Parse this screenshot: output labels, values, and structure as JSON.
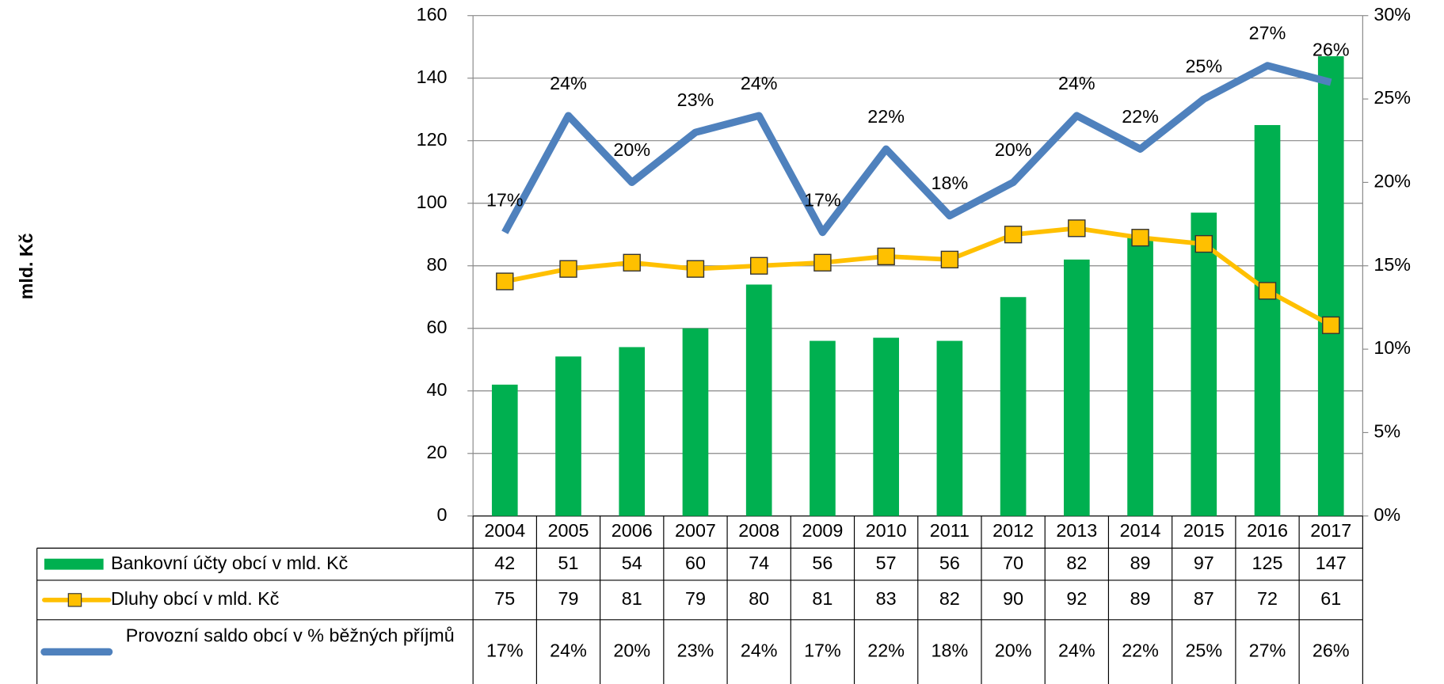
{
  "chart_data": {
    "type": "bar-line",
    "y_axis_label": "mld. Kč",
    "categories": [
      "2004",
      "2005",
      "2006",
      "2007",
      "2008",
      "2009",
      "2010",
      "2011",
      "2012",
      "2013",
      "2014",
      "2015",
      "2016",
      "2017"
    ],
    "series": [
      {
        "name": "Bankovní účty obcí v mld. Kč",
        "type": "bar",
        "color": "#00b050",
        "values": [
          42,
          51,
          54,
          60,
          74,
          56,
          57,
          56,
          70,
          82,
          89,
          97,
          125,
          147
        ]
      },
      {
        "name": "Dluhy obcí v mld. Kč",
        "type": "line",
        "color": "#ffc000",
        "marker": "square",
        "values": [
          75,
          79,
          81,
          79,
          80,
          81,
          83,
          82,
          90,
          92,
          89,
          87,
          72,
          61
        ]
      },
      {
        "name": "Provozní saldo obcí v % běžných příjmů",
        "type": "line",
        "axis": "y2",
        "color": "#4f81bd",
        "values": [
          17,
          24,
          20,
          23,
          24,
          17,
          22,
          18,
          20,
          24,
          22,
          25,
          27,
          26
        ],
        "value_labels": [
          "17%",
          "24%",
          "20%",
          "23%",
          "24%",
          "17%",
          "22%",
          "18%",
          "20%",
          "24%",
          "22%",
          "25%",
          "27%",
          "26%"
        ]
      }
    ],
    "ylim": [
      0,
      160
    ],
    "yticks": [
      0,
      20,
      40,
      60,
      80,
      100,
      120,
      140,
      160
    ],
    "y2lim": [
      0,
      30
    ],
    "y2ticks": [
      {
        "value": 0,
        "label": "0%"
      },
      {
        "value": 5,
        "label": "5%"
      },
      {
        "value": 10,
        "label": "10%"
      },
      {
        "value": 15,
        "label": "15%"
      },
      {
        "value": 20,
        "label": "20%"
      },
      {
        "value": 25,
        "label": "25%"
      },
      {
        "value": 30,
        "label": "30%"
      }
    ],
    "grid": true,
    "legend": "data-table"
  }
}
